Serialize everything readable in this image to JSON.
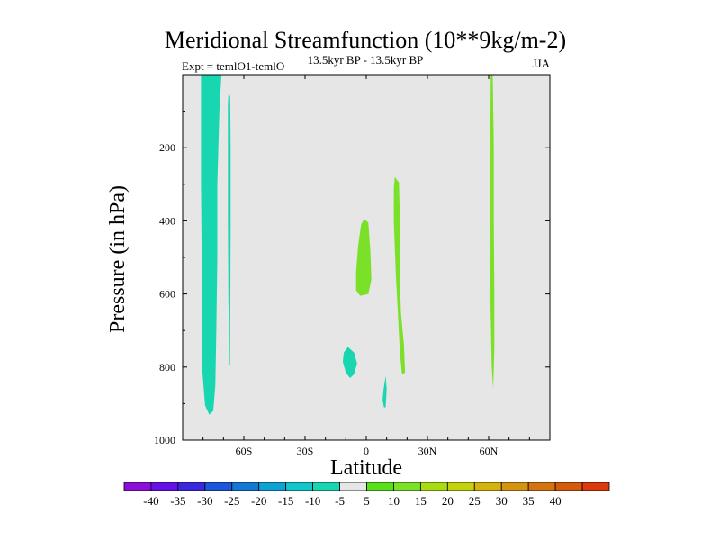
{
  "chart_data": {
    "type": "contour",
    "title": "Meridional Streamfunction (10**9kg/m-2)",
    "left_string": "Expt = temlO1-temlO",
    "center_string": "13.5kyr BP - 13.5kyr BP",
    "right_string": "JJA",
    "xlabel": "Latitude",
    "ylabel": "Pressure (in hPa)",
    "xlim": [
      -90,
      90
    ],
    "ylim": [
      0,
      1000
    ],
    "y_reversed": true,
    "background_color": "#e6e6e6",
    "x_ticks": [
      {
        "value": -60,
        "label": "60S"
      },
      {
        "value": -30,
        "label": "30S"
      },
      {
        "value": 0,
        "label": "0"
      },
      {
        "value": 30,
        "label": "30N"
      },
      {
        "value": 60,
        "label": "60N"
      }
    ],
    "y_ticks": [
      {
        "value": 200,
        "label": "200"
      },
      {
        "value": 400,
        "label": "400"
      },
      {
        "value": 600,
        "label": "600"
      },
      {
        "value": 800,
        "label": "800"
      },
      {
        "value": 1000,
        "label": "1000"
      }
    ],
    "regions": [
      {
        "name": "contour-neg-band-70s",
        "level": -10,
        "color": "#18d6b0",
        "points": [
          [
            -81,
            0
          ],
          [
            -71,
            0
          ],
          [
            -72,
            100
          ],
          [
            -73,
            300
          ],
          [
            -73,
            500
          ],
          [
            -73.5,
            700
          ],
          [
            -74,
            850
          ],
          [
            -75,
            920
          ],
          [
            -77,
            930
          ],
          [
            -79,
            905
          ],
          [
            -80.5,
            800
          ],
          [
            -80.5,
            600
          ],
          [
            -81,
            300
          ],
          [
            -81,
            100
          ]
        ]
      },
      {
        "name": "contour-neg-sliver-67s",
        "level": -10,
        "color": "#18d6b0",
        "points": [
          [
            -67.5,
            50
          ],
          [
            -66.7,
            60
          ],
          [
            -66.5,
            200
          ],
          [
            -66.5,
            400
          ],
          [
            -66.6,
            600
          ],
          [
            -66.8,
            795
          ],
          [
            -67.2,
            795
          ],
          [
            -67.6,
            600
          ],
          [
            -67.8,
            400
          ],
          [
            -67.8,
            200
          ],
          [
            -67.8,
            80
          ]
        ]
      },
      {
        "name": "contour-neg-blob-10s",
        "level": -10,
        "color": "#18d6b0",
        "points": [
          [
            -11,
            760
          ],
          [
            -9,
            745
          ],
          [
            -6,
            760
          ],
          [
            -4.5,
            790
          ],
          [
            -6,
            820
          ],
          [
            -8,
            830
          ],
          [
            -10,
            815
          ],
          [
            -11.5,
            785
          ]
        ]
      },
      {
        "name": "contour-neg-blob-9n",
        "level": -10,
        "color": "#18d6b0",
        "points": [
          [
            9.5,
            825
          ],
          [
            10,
            860
          ],
          [
            9.5,
            910
          ],
          [
            8.7,
            910
          ],
          [
            8,
            890
          ],
          [
            8.5,
            860
          ]
        ]
      },
      {
        "name": "contour-pos-blob-eq",
        "level": 5,
        "color": "#7ae028",
        "points": [
          [
            -1,
            395
          ],
          [
            1,
            405
          ],
          [
            2,
            480
          ],
          [
            2.5,
            560
          ],
          [
            1,
            600
          ],
          [
            -3,
            605
          ],
          [
            -5,
            590
          ],
          [
            -5,
            540
          ],
          [
            -4,
            470
          ],
          [
            -2.5,
            410
          ]
        ]
      },
      {
        "name": "contour-pos-band-15n",
        "level": 5,
        "color": "#7ae028",
        "points": [
          [
            14,
            280
          ],
          [
            16,
            295
          ],
          [
            16.5,
            400
          ],
          [
            16.5,
            560
          ],
          [
            17,
            650
          ],
          [
            18.5,
            740
          ],
          [
            19,
            815
          ],
          [
            17.5,
            820
          ],
          [
            16.5,
            760
          ],
          [
            15.5,
            650
          ],
          [
            14.5,
            550
          ],
          [
            13.5,
            400
          ],
          [
            13.5,
            310
          ]
        ]
      },
      {
        "name": "contour-pos-band-62n",
        "level": 5,
        "color": "#7ae028",
        "points": [
          [
            61,
            0
          ],
          [
            62,
            0
          ],
          [
            62.5,
            200
          ],
          [
            62.5,
            400
          ],
          [
            62.8,
            600
          ],
          [
            62.8,
            750
          ],
          [
            62.2,
            860
          ],
          [
            61.5,
            800
          ],
          [
            60.8,
            600
          ],
          [
            60.8,
            400
          ],
          [
            60.8,
            200
          ]
        ]
      }
    ],
    "colorbar": {
      "colors": [
        "#8c0ed8",
        "#6410e6",
        "#3a28de",
        "#1c56da",
        "#1278d4",
        "#0ea2d4",
        "#12c6cc",
        "#18d6b0",
        "#e6e6e6",
        "#58e018",
        "#7ae028",
        "#a6dc10",
        "#c4d20e",
        "#d4b40c",
        "#d49410",
        "#d47410",
        "#d45a0c",
        "#dc3a0c"
      ],
      "labels": [
        "-40",
        "-35",
        "-30",
        "-25",
        "-20",
        "-15",
        "-10",
        "-5",
        "5",
        "10",
        "15",
        "20",
        "25",
        "30",
        "35",
        "40"
      ]
    }
  }
}
